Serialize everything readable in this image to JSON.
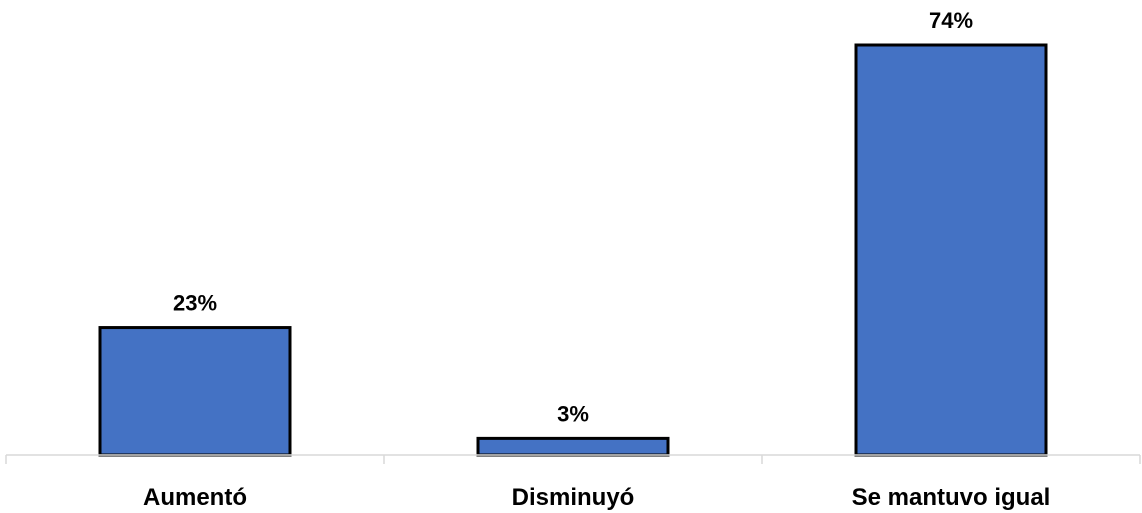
{
  "chart_data": {
    "type": "bar",
    "categories": [
      "Aumentó",
      "Disminuyó",
      "Se mantuvo igual"
    ],
    "values": [
      23,
      3,
      74
    ],
    "data_labels": [
      "23%",
      "3%",
      "74%"
    ],
    "title": "",
    "xlabel": "",
    "ylabel": "",
    "ylim": [
      0,
      80
    ],
    "grid": false,
    "legend": "none",
    "bar_color": "#4472C4",
    "bar_border_color": "#000000",
    "axis_color": "#D9D9D9"
  }
}
